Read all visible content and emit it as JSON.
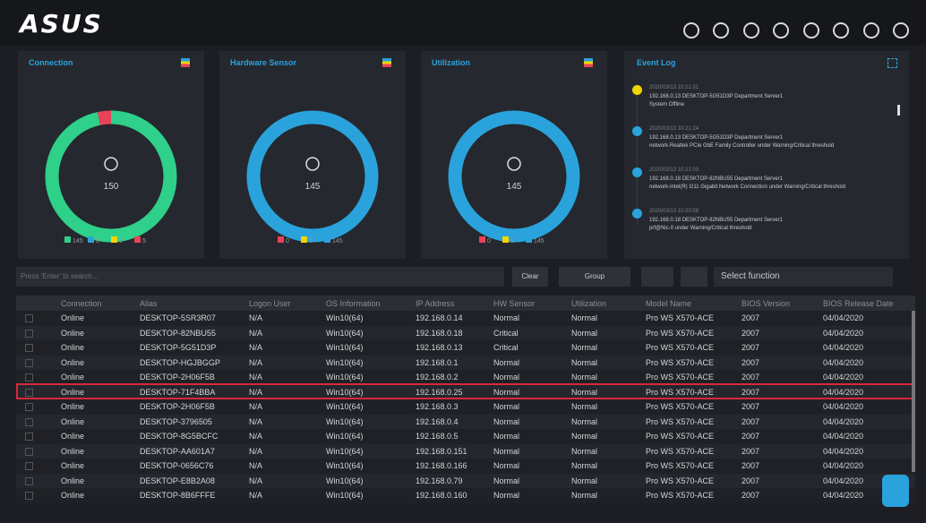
{
  "header": {
    "logo": "ASUS"
  },
  "panels": [
    {
      "title": "Connection",
      "total": 150,
      "segments": [
        {
          "color": "#2fd08a",
          "value": 145
        },
        {
          "color": "#2aa3dc",
          "value": 0
        },
        {
          "color": "#f2d400",
          "value": 0
        },
        {
          "color": "#e8435a",
          "value": 5
        }
      ]
    },
    {
      "title": "Hardware Sensor",
      "total": 145,
      "segments": [
        {
          "color": "#e8435a",
          "value": 0
        },
        {
          "color": "#f2d400",
          "value": 0
        },
        {
          "color": "#2aa3dc",
          "value": 145
        }
      ]
    },
    {
      "title": "Utilization",
      "total": 145,
      "segments": [
        {
          "color": "#e8435a",
          "value": 0
        },
        {
          "color": "#f2d400",
          "value": 0
        },
        {
          "color": "#2aa3dc",
          "value": 145
        }
      ]
    }
  ],
  "event_log": {
    "title": "Event Log",
    "events": [
      {
        "color": "#f2d400",
        "time": "2020/03/13 10:21:31",
        "lines": [
          "192.168.0.13 DESKTOP-5G51D3P Department Server1",
          "System Offline"
        ]
      },
      {
        "color": "#2aa3dc",
        "time": "2020/03/13 10:21:24",
        "lines": [
          "192.168.0.13 DESKTOP-5G51D3P Department Server1",
          "network-Realtek PCIe GbE Family Controller under Warning/Critical threshold"
        ]
      },
      {
        "color": "#2aa3dc",
        "time": "2020/03/13 10:21:03",
        "lines": [
          "192.168.0.18 DESKTOP-82NBU55 Department Server1",
          "network-Intel(R) I211 Gigabit Network Connection under Warning/Critical threshold"
        ]
      },
      {
        "color": "#2aa3dc",
        "time": "2020/03/13 10:20:58",
        "lines": [
          "192.168.0.18 DESKTOP-82NBU55 Department Server1",
          "prf@Nic-0 under Warning/Critical threshold"
        ]
      }
    ]
  },
  "toolbar": {
    "search_placeholder": "Press 'Enter' to search...",
    "clear": "Clear",
    "group": "Group",
    "select": "Select function"
  },
  "table": {
    "selected_row": 5,
    "columns": [
      "Connection",
      "Alias",
      "Logon User",
      "OS Information",
      "IP Address",
      "HW Sensor",
      "Utilization",
      "Model Name",
      "BIOS Version",
      "BIOS Release Date"
    ],
    "rows": [
      [
        "Online",
        "DESKTOP-5SR3R07",
        "N/A",
        "Win10(64)",
        "192.168.0.14",
        "Normal",
        "Normal",
        "Pro WS X570-ACE",
        "2007",
        "04/04/2020"
      ],
      [
        "Online",
        "DESKTOP-82NBU55",
        "N/A",
        "Win10(64)",
        "192.168.0.18",
        "Critical",
        "Normal",
        "Pro WS X570-ACE",
        "2007",
        "04/04/2020"
      ],
      [
        "Online",
        "DESKTOP-5G51D3P",
        "N/A",
        "Win10(64)",
        "192.168.0.13",
        "Critical",
        "Normal",
        "Pro WS X570-ACE",
        "2007",
        "04/04/2020"
      ],
      [
        "Online",
        "DESKTOP-HGJBGGP",
        "N/A",
        "Win10(64)",
        "192.168.0.1",
        "Normal",
        "Normal",
        "Pro WS X570-ACE",
        "2007",
        "04/04/2020"
      ],
      [
        "Online",
        "DESKTOP-2H06F5B",
        "N/A",
        "Win10(64)",
        "192.168.0.2",
        "Normal",
        "Normal",
        "Pro WS X570-ACE",
        "2007",
        "04/04/2020"
      ],
      [
        "Online",
        "DESKTOP-71F4BBA",
        "N/A",
        "Win10(64)",
        "192.168.0.25",
        "Normal",
        "Normal",
        "Pro WS X570-ACE",
        "2007",
        "04/04/2020"
      ],
      [
        "Online",
        "DESKTOP-2H06F5B",
        "N/A",
        "Win10(64)",
        "192.168.0.3",
        "Normal",
        "Normal",
        "Pro WS X570-ACE",
        "2007",
        "04/04/2020"
      ],
      [
        "Online",
        "DESKTOP-3796505",
        "N/A",
        "Win10(64)",
        "192.168.0.4",
        "Normal",
        "Normal",
        "Pro WS X570-ACE",
        "2007",
        "04/04/2020"
      ],
      [
        "Online",
        "DESKTOP-8G5BCFC",
        "N/A",
        "Win10(64)",
        "192.168.0.5",
        "Normal",
        "Normal",
        "Pro WS X570-ACE",
        "2007",
        "04/04/2020"
      ],
      [
        "Online",
        "DESKTOP-AA601A7",
        "N/A",
        "Win10(64)",
        "192.168.0.151",
        "Normal",
        "Normal",
        "Pro WS X570-ACE",
        "2007",
        "04/04/2020"
      ],
      [
        "Online",
        "DESKTOP-0656C76",
        "N/A",
        "Win10(64)",
        "192.168.0.166",
        "Normal",
        "Normal",
        "Pro WS X570-ACE",
        "2007",
        "04/04/2020"
      ],
      [
        "Online",
        "DESKTOP-E8B2A08",
        "N/A",
        "Win10(64)",
        "192.168.0.79",
        "Normal",
        "Normal",
        "Pro WS X570-ACE",
        "2007",
        "04/04/2020"
      ],
      [
        "Online",
        "DESKTOP-8B6FFFE",
        "N/A",
        "Win10(64)",
        "192.168.0.160",
        "Normal",
        "Normal",
        "Pro WS X570-ACE",
        "2007",
        "04/04/2020"
      ]
    ]
  }
}
